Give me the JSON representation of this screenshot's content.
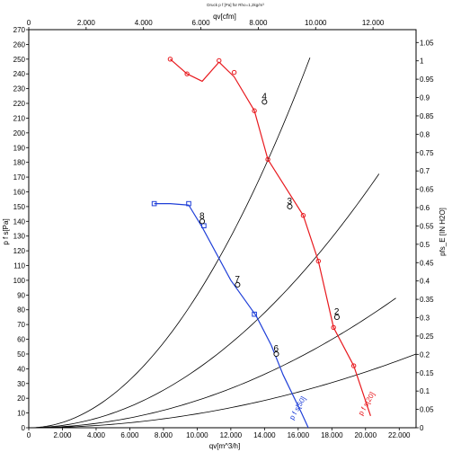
{
  "chart_data": {
    "type": "line",
    "title": "Druck p f [Pa] für Rho=1,2kg/m³",
    "xlabel": "qv[m^3/h]",
    "x2label": "qv[cfm]",
    "ylabel": "p f s[Pa]",
    "y2label": "pfs_E [IN H2O]",
    "xlim": [
      0,
      23000
    ],
    "ylim": [
      0,
      270
    ],
    "x2lim": [
      0,
      13500
    ],
    "y2lim": [
      0,
      1.085
    ],
    "x_ticks": [
      0,
      2000,
      4000,
      6000,
      8000,
      10000,
      12000,
      14000,
      16000,
      18000,
      20000,
      22000
    ],
    "x_tick_labels": [
      "0",
      "2.000",
      "4.000",
      "6.000",
      "8.000",
      "10.000",
      "12.000",
      "14.000",
      "16.000",
      "18.000",
      "20.000",
      "22.000"
    ],
    "y_ticks": [
      0,
      10,
      20,
      30,
      40,
      50,
      60,
      70,
      80,
      90,
      100,
      110,
      120,
      130,
      140,
      150,
      160,
      170,
      180,
      190,
      200,
      210,
      220,
      230,
      240,
      250,
      260,
      270
    ],
    "y_tick_labels": [
      "0",
      "10",
      "20",
      "30",
      "40",
      "50",
      "60",
      "70",
      "80",
      "90",
      "100",
      "110",
      "120",
      "130",
      "140",
      "150",
      "160",
      "170",
      "180",
      "190",
      "200",
      "210",
      "220",
      "230",
      "240",
      "250",
      "260",
      "270"
    ],
    "x2_ticks": [
      0,
      2000,
      4000,
      6000,
      8000,
      10000,
      12000
    ],
    "x2_tick_labels": [
      "0",
      "2.000",
      "4.000",
      "6.000",
      "8.000",
      "10.000",
      "12.000"
    ],
    "y2_ticks": [
      0,
      0.05,
      0.1,
      0.15,
      0.2,
      0.25,
      0.3,
      0.35,
      0.4,
      0.45,
      0.5,
      0.55,
      0.6,
      0.65,
      0.7,
      0.75,
      0.8,
      0.85,
      0.9,
      0.95,
      1.0,
      1.05
    ],
    "y2_tick_labels": [
      "0",
      "0.05",
      "0.1",
      "0.15",
      "0.2",
      "0.25",
      "0.3",
      "0.35",
      "0.4",
      "0.45",
      "0.5",
      "0.55",
      "0.6",
      "0.65",
      "0.7",
      "0.75",
      "0.8",
      "0.85",
      "0.9",
      "0.95",
      "1",
      "1.05"
    ],
    "grid": false,
    "series": [
      {
        "name": "p f s[20]",
        "color": "#e8191e",
        "marker": "circle",
        "points": [
          [
            8400,
            250
          ],
          [
            9400,
            240
          ],
          [
            10300,
            235
          ],
          [
            11300,
            248
          ],
          [
            12200,
            238
          ],
          [
            13400,
            215
          ],
          [
            14200,
            182
          ],
          [
            16300,
            144
          ],
          [
            17200,
            113
          ],
          [
            18100,
            68
          ],
          [
            19300,
            42
          ],
          [
            20300,
            8
          ]
        ],
        "markers": [
          [
            8400,
            250
          ],
          [
            9400,
            240
          ],
          [
            11300,
            249
          ],
          [
            12200,
            241
          ],
          [
            13400,
            215
          ],
          [
            14200,
            182
          ],
          [
            16300,
            144
          ],
          [
            17200,
            113
          ],
          [
            18100,
            68
          ],
          [
            19300,
            42
          ]
        ],
        "label_at": [
          19800,
          8
        ]
      },
      {
        "name": "p f s[50]",
        "color": "#1f3fd8",
        "marker": "square",
        "points": [
          [
            7450,
            152
          ],
          [
            8400,
            152
          ],
          [
            9500,
            151
          ],
          [
            10300,
            136
          ],
          [
            12000,
            100
          ],
          [
            13500,
            76
          ],
          [
            14400,
            56
          ],
          [
            15100,
            36
          ],
          [
            16200,
            10
          ],
          [
            16600,
            0
          ]
        ],
        "markers": [
          [
            7450,
            152
          ],
          [
            9500,
            152
          ],
          [
            10400,
            137
          ],
          [
            13400,
            77
          ]
        ],
        "label_at": [
          15700,
          5
        ]
      }
    ],
    "system_curves": [
      {
        "k": 9e-07,
        "xmax": 16700,
        "color": "#000000"
      },
      {
        "k": 3.98e-07,
        "xmax": 20800,
        "color": "#000000"
      },
      {
        "k": 1.85e-07,
        "xmax": 21800,
        "color": "#000000"
      },
      {
        "k": 9.45e-08,
        "xmax": 23000,
        "color": "#000000"
      }
    ],
    "operating_points": [
      {
        "label": "2",
        "x": 18300,
        "y": 75
      },
      {
        "label": "3",
        "x": 15500,
        "y": 150
      },
      {
        "label": "4",
        "x": 14000,
        "y": 221
      },
      {
        "label": "6",
        "x": 14700,
        "y": 50
      },
      {
        "label": "7",
        "x": 12400,
        "y": 97
      },
      {
        "label": "8",
        "x": 10300,
        "y": 140
      }
    ],
    "series_label_color": "#1f3fd8"
  }
}
